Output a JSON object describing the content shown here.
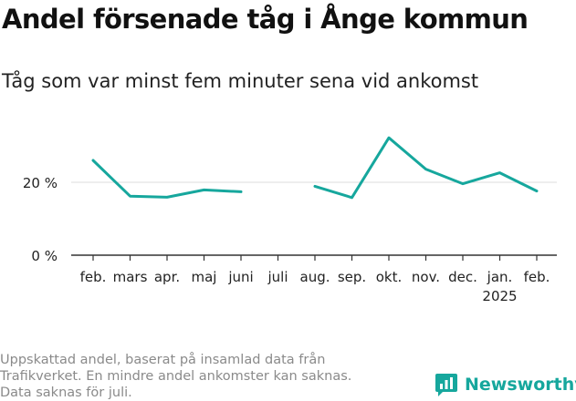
{
  "title": "Andel försenade tåg i Ånge kommun",
  "subtitle": "Tåg som var minst fem minuter sena vid ankomst",
  "footnote": [
    "Uppskattad andel, baserat på insamlad data från",
    "Trafikverket. En mindre andel ankomster kan saknas.",
    "Data saknas för juli."
  ],
  "brand": {
    "name": "Newsworthy",
    "icon": "newsworthy-logo-icon"
  },
  "colors": {
    "line": "#16a79d",
    "grid": "#dddddd",
    "axis": "#333333",
    "text": "#222222",
    "footnote": "#8a8a8a"
  },
  "chart_data": {
    "type": "line",
    "categories": [
      "feb.",
      "mars",
      "apr.",
      "maj",
      "juni",
      "juli",
      "aug.",
      "sep.",
      "okt.",
      "nov.",
      "dec.",
      "jan.",
      "feb."
    ],
    "year_label": {
      "category_index": 11,
      "text": "2025"
    },
    "series": [
      {
        "values": [
          26,
          16.2,
          15.9,
          17.9,
          17.4,
          null,
          18.9,
          15.8,
          32.2,
          23.6,
          19.6,
          22.6,
          17.6
        ]
      }
    ],
    "yticks": [
      {
        "value": 0,
        "label": "0 %"
      },
      {
        "value": 20,
        "label": "20 %"
      }
    ],
    "ylim": [
      0,
      36
    ],
    "grid": true
  }
}
